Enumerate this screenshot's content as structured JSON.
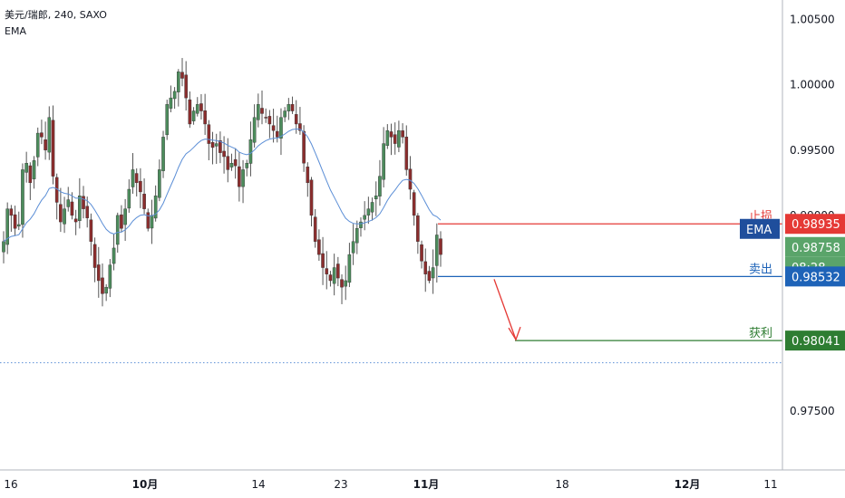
{
  "header": {
    "symbol_line": "美元/瑞郎, 240, SAXO",
    "indicator": "EMA"
  },
  "colors": {
    "up_candle": "#26a69a",
    "down_candle": "#ef5350",
    "candle_body_up": "#4c8c5c",
    "candle_body_down": "#8b2d2d",
    "ema": "#5b8ed6",
    "stop_line": "#e53935",
    "entry_line": "#1e63b8",
    "target_line": "#2e7d32",
    "arrow": "#e53935",
    "dotted": "#5b8ed6"
  },
  "annotations": {
    "stop_label": "止损",
    "stop_price": "0.98935",
    "ema_tag": "EMA",
    "current_price": "0.98758",
    "countdown": "08:28",
    "sell_label": "卖出",
    "entry_price": "0.98532",
    "target_label": "获利",
    "target_price": "0.98041"
  },
  "chart_data": {
    "type": "candlestick",
    "title": "美元/瑞郎, 240, SAXO",
    "ylim": [
      0.9705,
      1.0065
    ],
    "yticks": [
      "1.00500",
      "1.00000",
      "0.99500",
      "0.99000",
      "0.97500"
    ],
    "xticks": [
      {
        "label": "16",
        "bold": false
      },
      {
        "label": "10月",
        "bold": true
      },
      {
        "label": "14",
        "bold": false
      },
      {
        "label": "23",
        "bold": false
      },
      {
        "label": "11月",
        "bold": true
      },
      {
        "label": "18",
        "bold": false
      },
      {
        "label": "12月",
        "bold": true
      },
      {
        "label": "11",
        "bold": false
      }
    ],
    "levels": {
      "stop_loss": 0.98935,
      "entry": 0.98532,
      "take_profit": 0.98041,
      "dotted_reference": 0.97871,
      "current": 0.98758
    },
    "trend_closes": [
      0.988,
      0.9905,
      0.99,
      0.989,
      0.9893,
      0.9935,
      0.994,
      0.9925,
      0.9942,
      0.9963,
      0.996,
      0.995,
      0.9975,
      0.993,
      0.991,
      0.9895,
      0.9905,
      0.9912,
      0.99,
      0.9895,
      0.9915,
      0.9905,
      0.9898,
      0.988,
      0.986,
      0.985,
      0.984,
      0.9845,
      0.9862,
      0.9875,
      0.99,
      0.989,
      0.9905,
      0.992,
      0.9935,
      0.9925,
      0.9918,
      0.9905,
      0.989,
      0.99,
      0.9915,
      0.9935,
      0.996,
      0.9985,
      0.999,
      0.9995,
      1.001,
      1.0005,
      0.999,
      0.997,
      0.998,
      0.9985,
      0.998,
      0.997,
      0.9955,
      0.9952,
      0.9955,
      0.9948,
      0.9945,
      0.9935,
      0.994,
      0.9938,
      0.9922,
      0.9935,
      0.994,
      0.9958,
      0.9975,
      0.9985,
      0.9978,
      0.9975,
      0.997,
      0.9965,
      0.996,
      0.9975,
      0.998,
      0.9985,
      0.998,
      0.997,
      0.9965,
      0.994,
      0.9925,
      0.99,
      0.988,
      0.987,
      0.986,
      0.9855,
      0.985,
      0.986,
      0.9852,
      0.9845,
      0.985,
      0.987,
      0.988,
      0.989,
      0.9895,
      0.99,
      0.9905,
      0.991,
      0.9915,
      0.993,
      0.9955,
      0.9965,
      0.996,
      0.9955,
      0.9965,
      0.996,
      0.9935,
      0.992,
      0.99,
      0.988,
      0.9865,
      0.9855,
      0.985,
      0.986,
      0.9885,
      0.987
    ],
    "ema_values_note": "EMA is computed from the candle closes"
  }
}
